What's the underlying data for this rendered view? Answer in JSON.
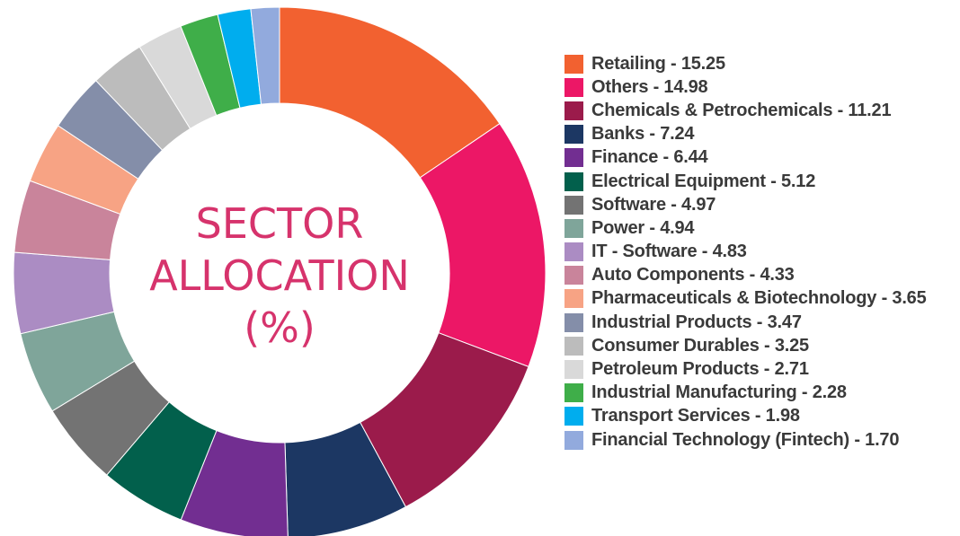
{
  "chart_data": {
    "type": "pie",
    "title": "SECTOR ALLOCATION (%)",
    "title_lines": [
      "SECTOR",
      "ALLOCATION",
      "(%)"
    ],
    "title_color": "#d6336c",
    "legend_position": "right",
    "donut": true,
    "slices": [
      {
        "name": "Retailing",
        "value": 15.25,
        "label": "Retailing - 15.25",
        "color": "#f26130"
      },
      {
        "name": "Others",
        "value": 14.98,
        "label": "Others - 14.98",
        "color": "#ec1766"
      },
      {
        "name": "Chemicals & Petrochemicals",
        "value": 11.21,
        "label": "Chemicals & Petrochemicals - 11.21",
        "color": "#9b1b4b"
      },
      {
        "name": "Banks",
        "value": 7.24,
        "label": "Banks - 7.24",
        "color": "#1c3763"
      },
      {
        "name": "Finance",
        "value": 6.44,
        "label": "Finance - 6.44",
        "color": "#722e91"
      },
      {
        "name": "Electrical Equipment",
        "value": 5.12,
        "label": "Electrical Equipment - 5.12",
        "color": "#02604c"
      },
      {
        "name": "Software",
        "value": 4.97,
        "label": "Software - 4.97",
        "color": "#737373"
      },
      {
        "name": "Power",
        "value": 4.94,
        "label": "Power - 4.94",
        "color": "#7fa59a"
      },
      {
        "name": "IT - Software",
        "value": 4.83,
        "label": "IT - Software - 4.83",
        "color": "#ab8cc3"
      },
      {
        "name": "Auto Components",
        "value": 4.33,
        "label": "Auto Components - 4.33",
        "color": "#c9849b"
      },
      {
        "name": "Pharmaceuticals & Biotechnology",
        "value": 3.65,
        "label": "Pharmaceuticals & Biotechnology - 3.65",
        "color": "#f7a384"
      },
      {
        "name": "Industrial Products",
        "value": 3.47,
        "label": "Industrial Products - 3.47",
        "color": "#848ea9"
      },
      {
        "name": "Consumer Durables",
        "value": 3.25,
        "label": "Consumer Durables - 3.25",
        "color": "#bcbcbc"
      },
      {
        "name": "Petroleum Products",
        "value": 2.71,
        "label": "Petroleum Products - 2.71",
        "color": "#d9d9d9"
      },
      {
        "name": "Industrial Manufacturing",
        "value": 2.28,
        "label": "Industrial Manufacturing - 2.28",
        "color": "#3fae49"
      },
      {
        "name": "Transport Services",
        "value": 1.98,
        "label": "Transport Services - 1.98",
        "color": "#00adee"
      },
      {
        "name": "Financial Technology (Fintech)",
        "value": 1.7,
        "label": "Financial Technology (Fintech) - 1.70",
        "color": "#92aadd"
      }
    ]
  }
}
